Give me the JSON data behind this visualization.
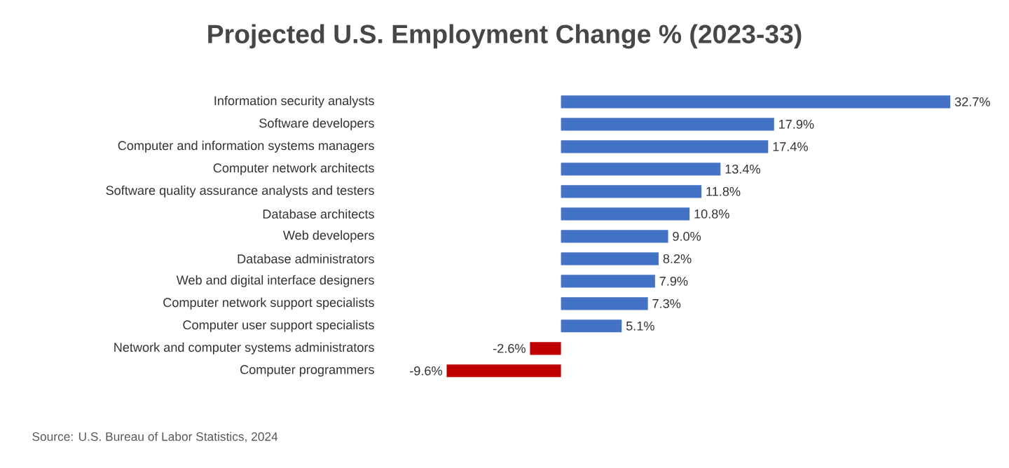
{
  "chart_data": {
    "type": "bar",
    "orientation": "horizontal",
    "title": "Projected U.S. Employment Change % (2023-33)",
    "categories": [
      "Information security analysts",
      "Software developers",
      "Computer and information systems managers",
      "Computer network architects",
      "Software quality assurance analysts and testers",
      "Database architects",
      "Web developers",
      "Database administrators",
      "Web and digital interface designers",
      "Computer network support specialists",
      "Computer user support specialists",
      "Network and computer systems administrators",
      "Computer programmers"
    ],
    "values": [
      32.7,
      17.9,
      17.4,
      13.4,
      11.8,
      10.8,
      9.0,
      8.2,
      7.9,
      7.3,
      5.1,
      -2.6,
      -9.6
    ],
    "colors": [
      "#4472c4",
      "#4472c4",
      "#4472c4",
      "#4472c4",
      "#4472c4",
      "#4472c4",
      "#4472c4",
      "#4472c4",
      "#4472c4",
      "#4472c4",
      "#4472c4",
      "#c00000",
      "#c00000"
    ],
    "value_labels": [
      "32.7%",
      "17.9%",
      "17.4%",
      "13.4%",
      "11.8%",
      "10.8%",
      "9.0%",
      "8.2%",
      "7.9%",
      "7.3%",
      "5.1%",
      "-2.6%",
      "-9.6%"
    ],
    "annotations": [
      "Source: U.S. Bureau of Labor Statistics, 2024"
    ]
  }
}
